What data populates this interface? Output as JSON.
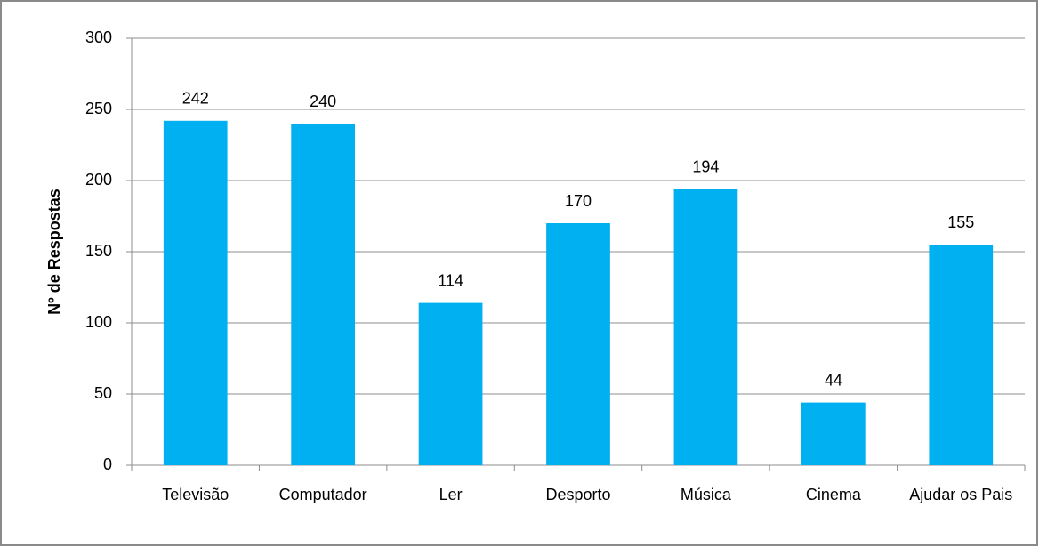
{
  "chart_data": {
    "type": "bar",
    "y_label": "Nº de Respostas",
    "categories": [
      "Televisão",
      "Computador",
      "Ler",
      "Desporto",
      "Música",
      "Cinema",
      "Ajudar os Pais"
    ],
    "values": [
      242,
      240,
      114,
      170,
      194,
      44,
      155
    ],
    "color": "#00b0f0",
    "ylim": [
      0,
      300
    ],
    "yticks": [
      0,
      50,
      100,
      150,
      200,
      250,
      300
    ],
    "grid": true
  }
}
